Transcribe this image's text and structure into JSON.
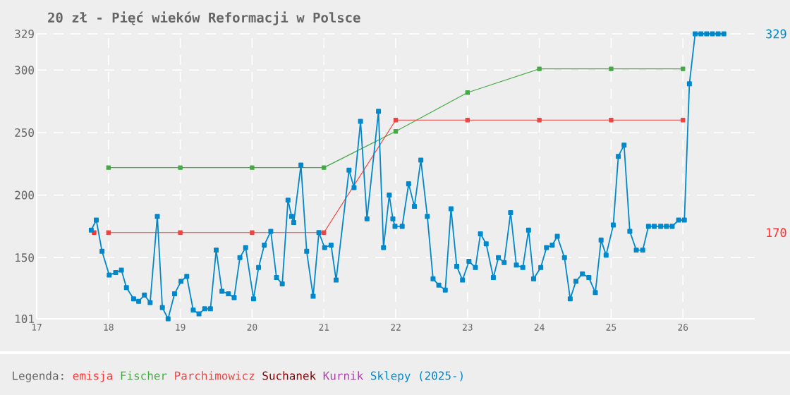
{
  "chart_data": {
    "type": "line",
    "title": "20 zł - Pięć wieków Reformacji w Polsce",
    "legend_title": "Legenda:",
    "xlim": [
      17,
      27
    ],
    "xticks": [
      17,
      18,
      19,
      20,
      21,
      22,
      23,
      24,
      25,
      26
    ],
    "ylim": [
      101,
      329
    ],
    "yticks": [
      101,
      150,
      200,
      250,
      300,
      329
    ],
    "grid": true,
    "legend": "bottom",
    "marker": "square",
    "line_style": "solid",
    "y2lim": [
      101,
      329
    ],
    "y2ticks": [
      329,
      170
    ],
    "series": [
      {
        "name": "emisja",
        "color": "#ff3333",
        "x": [
          17.8
        ],
        "values": [
          170
        ]
      },
      {
        "name": "Fischer",
        "color": "#44aa44",
        "x": [
          18,
          19,
          20,
          21,
          22,
          23,
          24,
          25,
          26
        ],
        "values": [
          222,
          222,
          222,
          222,
          251,
          282,
          301,
          301,
          301
        ]
      },
      {
        "name": "Parchimowicz",
        "color": "#ee4444",
        "x": [
          18,
          19,
          20,
          21,
          22,
          23,
          24,
          25,
          26
        ],
        "values": [
          170,
          170,
          170,
          170,
          260,
          260,
          260,
          260,
          260
        ]
      },
      {
        "name": "Suchanek",
        "color": "#880000"
      },
      {
        "name": "Kurnik",
        "color": "#aa44aa"
      },
      {
        "name": "Sklepy (2025-)",
        "color": "#0088cc",
        "x": [
          17.76,
          17.83,
          17.91,
          18.01,
          18.1,
          18.18,
          18.25,
          18.35,
          18.42,
          18.5,
          18.58,
          18.68,
          18.75,
          18.83,
          18.92,
          19.01,
          19.09,
          19.18,
          19.26,
          19.34,
          19.42,
          19.5,
          19.58,
          19.67,
          19.75,
          19.83,
          19.91,
          20.02,
          20.09,
          20.17,
          20.26,
          20.34,
          20.42,
          20.5,
          20.55,
          20.58,
          20.68,
          20.76,
          20.85,
          20.93,
          21.01,
          21.1,
          21.17,
          21.35,
          21.42,
          21.51,
          21.6,
          21.76,
          21.83,
          21.91,
          21.96,
          21.99,
          22.09,
          22.18,
          22.26,
          22.35,
          22.44,
          22.52,
          22.6,
          22.69,
          22.77,
          22.85,
          22.93,
          23.02,
          23.11,
          23.18,
          23.26,
          23.36,
          23.43,
          23.51,
          23.6,
          23.68,
          23.77,
          23.85,
          23.92,
          24.02,
          24.1,
          24.18,
          24.25,
          24.35,
          24.43,
          24.51,
          24.6,
          24.69,
          24.78,
          24.86,
          24.93,
          25.03,
          25.1,
          25.18,
          25.26,
          25.35,
          25.44,
          25.52,
          25.6,
          25.69,
          25.77,
          25.85,
          25.94,
          26.02,
          26.09,
          26.17,
          26.25,
          26.33,
          26.41,
          26.49,
          26.57
        ],
        "values": [
          172,
          180,
          155,
          136,
          138,
          140,
          126,
          117,
          115,
          120,
          114,
          183,
          110,
          101,
          121,
          131,
          135,
          108,
          105,
          109,
          109,
          156,
          123,
          121,
          118,
          150,
          158,
          117,
          142,
          160,
          171,
          134,
          129,
          196,
          183,
          178,
          224,
          155,
          119,
          170,
          158,
          160,
          132,
          220,
          206,
          259,
          181,
          267,
          158,
          200,
          181,
          175,
          175,
          209,
          191,
          228,
          183,
          133,
          128,
          124,
          189,
          143,
          132,
          147,
          142,
          169,
          161,
          134,
          150,
          146,
          186,
          144,
          142,
          172,
          133,
          142,
          158,
          160,
          167,
          150,
          117,
          131,
          137,
          134,
          122,
          164,
          152,
          176,
          231,
          240,
          171,
          156,
          156,
          175,
          175,
          175,
          175,
          175,
          180,
          180,
          289,
          329,
          329,
          329,
          329,
          329,
          329
        ]
      }
    ]
  }
}
